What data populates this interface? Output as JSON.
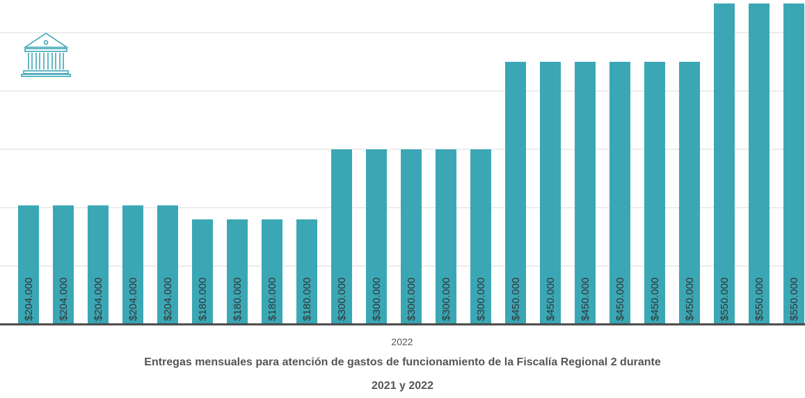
{
  "chart_data": {
    "type": "bar",
    "title": "Entregas mensuales para atención de gastos de funcionamiento de la Fiscalía Regional 2 durante 2021 y 2022",
    "xlabel": "2022",
    "values": [
      204000,
      204000,
      204000,
      204000,
      204000,
      180000,
      180000,
      180000,
      180000,
      300000,
      300000,
      300000,
      300000,
      300000,
      450000,
      450000,
      450000,
      450000,
      450000,
      450000,
      550000,
      550000,
      550000
    ],
    "value_labels": [
      "$204.000",
      "$204.000",
      "$204.000",
      "$204.000",
      "$204.000",
      "$180.000",
      "$180.000",
      "$180.000",
      "$180.000",
      "$300.000",
      "$300.000",
      "$300.000",
      "$300.000",
      "$300.000",
      "$450.000",
      "$450.000",
      "$450.000",
      "$450.000",
      "$450.000",
      "$450.000",
      "$550.000",
      "$550.000",
      "$550.000"
    ],
    "color": "#3ba7b5",
    "ylim": [
      0,
      550000
    ],
    "yticks": [
      0,
      100000,
      200000,
      300000,
      400000,
      500000
    ],
    "grid": true
  }
}
